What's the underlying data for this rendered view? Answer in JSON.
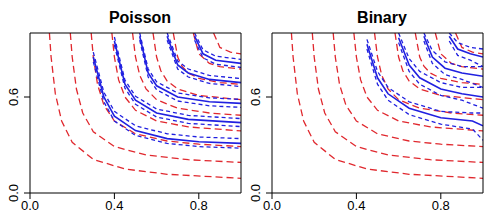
{
  "chart_data": [
    {
      "type": "line",
      "title": "Poisson",
      "xlim": [
        0,
        1
      ],
      "ylim": [
        0,
        1
      ],
      "xticks": [
        {
          "value": 0,
          "label": "0.0"
        },
        {
          "value": 0.4,
          "label": "0.4"
        },
        {
          "value": 0.8,
          "label": "0.8"
        }
      ],
      "yticks": [
        {
          "value": 0,
          "label": "0.0"
        },
        {
          "value": 0.6,
          "label": "0.6"
        }
      ],
      "series": [
        {
          "color": "#e0282e",
          "line_style": "dashed",
          "x": [
            0.092,
            0.1,
            0.12,
            0.15,
            0.2,
            0.3,
            0.45,
            0.65,
            1.0
          ],
          "y": [
            1.0,
            0.85,
            0.621,
            0.45,
            0.317,
            0.21,
            0.15,
            0.117,
            0.092
          ]
        },
        {
          "color": "#e0282e",
          "line_style": "dashed",
          "x": [
            0.191,
            0.2,
            0.22,
            0.25,
            0.3,
            0.4,
            0.55,
            0.75,
            1.0
          ],
          "y": [
            1.0,
            0.85,
            0.65,
            0.5,
            0.383,
            0.29,
            0.238,
            0.208,
            0.191
          ]
        },
        {
          "color": "#e0282e",
          "line_style": "dashed",
          "x": [
            0.29,
            0.3,
            0.32,
            0.35,
            0.4,
            0.5,
            0.65,
            0.8,
            1.0
          ],
          "y": [
            1.0,
            0.85,
            0.679,
            0.55,
            0.45,
            0.37,
            0.325,
            0.305,
            0.29
          ]
        },
        {
          "color": "#e0282e",
          "line_style": "dashed",
          "x": [
            0.388,
            0.4,
            0.42,
            0.45,
            0.5,
            0.6,
            0.75,
            1.0
          ],
          "y": [
            1.0,
            0.85,
            0.707,
            0.6,
            0.517,
            0.45,
            0.413,
            0.388
          ]
        },
        {
          "color": "#e0282e",
          "line_style": "dashed",
          "x": [
            0.486,
            0.5,
            0.52,
            0.55,
            0.6,
            0.7,
            0.85,
            1.0
          ],
          "y": [
            1.0,
            0.85,
            0.736,
            0.65,
            0.583,
            0.53,
            0.5,
            0.486
          ]
        },
        {
          "color": "#e0282e",
          "line_style": "dashed",
          "x": [
            0.583,
            0.6,
            0.62,
            0.65,
            0.7,
            0.8,
            1.0
          ],
          "y": [
            1.0,
            0.85,
            0.764,
            0.7,
            0.65,
            0.61,
            0.583
          ]
        },
        {
          "color": "#e0282e",
          "line_style": "dashed",
          "x": [
            0.679,
            0.7,
            0.72,
            0.75,
            0.8,
            0.9,
            1.0
          ],
          "y": [
            1.0,
            0.85,
            0.793,
            0.75,
            0.717,
            0.69,
            0.679
          ]
        },
        {
          "color": "#e0282e",
          "line_style": "dashed",
          "x": [
            0.774,
            0.8,
            0.85,
            0.9,
            1.0
          ],
          "y": [
            1.0,
            0.87,
            0.81,
            0.79,
            0.774
          ]
        },
        {
          "color": "#e0282e",
          "line_style": "dashed",
          "x": [
            0.87,
            0.9,
            0.95,
            1.0
          ],
          "y": [
            1.0,
            0.91,
            0.88,
            0.87
          ]
        },
        {
          "color": "#2020e0",
          "line_style": "solid",
          "x": [
            0.3,
            0.35,
            0.4,
            0.5,
            0.65,
            0.8,
            1.0
          ],
          "y": [
            0.85,
            0.6,
            0.48,
            0.39,
            0.34,
            0.32,
            0.31
          ]
        },
        {
          "color": "#2020e0",
          "line_style": "dashed",
          "x": [
            0.3,
            0.35,
            0.4,
            0.5,
            0.65,
            0.8,
            1.0
          ],
          "y": [
            0.88,
            0.63,
            0.51,
            0.42,
            0.37,
            0.35,
            0.34
          ]
        },
        {
          "color": "#2020e0",
          "line_style": "dashed",
          "x": [
            0.3,
            0.35,
            0.4,
            0.5,
            0.65,
            0.8,
            1.0
          ],
          "y": [
            0.82,
            0.57,
            0.45,
            0.36,
            0.31,
            0.29,
            0.28
          ]
        },
        {
          "color": "#2020e0",
          "line_style": "solid",
          "x": [
            0.4,
            0.45,
            0.5,
            0.6,
            0.75,
            1.0
          ],
          "y": [
            0.95,
            0.68,
            0.58,
            0.5,
            0.46,
            0.44
          ]
        },
        {
          "color": "#2020e0",
          "line_style": "dashed",
          "x": [
            0.4,
            0.45,
            0.5,
            0.6,
            0.75,
            1.0
          ],
          "y": [
            0.975,
            0.705,
            0.605,
            0.525,
            0.485,
            0.465
          ]
        },
        {
          "color": "#2020e0",
          "line_style": "dashed",
          "x": [
            0.4,
            0.45,
            0.5,
            0.6,
            0.75,
            1.0
          ],
          "y": [
            0.925,
            0.655,
            0.555,
            0.475,
            0.435,
            0.415
          ]
        },
        {
          "color": "#2020e0",
          "line_style": "solid",
          "x": [
            0.52,
            0.56,
            0.6,
            0.7,
            0.85,
            1.0
          ],
          "y": [
            0.98,
            0.75,
            0.67,
            0.6,
            0.57,
            0.56
          ]
        },
        {
          "color": "#2020e0",
          "line_style": "dashed",
          "x": [
            0.52,
            0.56,
            0.6,
            0.7,
            0.85,
            1.0
          ],
          "y": [
            1.0,
            0.775,
            0.695,
            0.625,
            0.595,
            0.585
          ]
        },
        {
          "color": "#2020e0",
          "line_style": "dashed",
          "x": [
            0.52,
            0.56,
            0.6,
            0.7,
            0.85,
            1.0
          ],
          "y": [
            0.955,
            0.725,
            0.645,
            0.575,
            0.545,
            0.535
          ]
        },
        {
          "color": "#2020e0",
          "line_style": "solid",
          "x": [
            0.65,
            0.7,
            0.75,
            0.85,
            1.0
          ],
          "y": [
            0.98,
            0.8,
            0.75,
            0.71,
            0.69
          ]
        },
        {
          "color": "#2020e0",
          "line_style": "dashed",
          "x": [
            0.65,
            0.7,
            0.75,
            0.85,
            1.0
          ],
          "y": [
            1.0,
            0.825,
            0.775,
            0.735,
            0.715
          ]
        },
        {
          "color": "#2020e0",
          "line_style": "dashed",
          "x": [
            0.65,
            0.7,
            0.75,
            0.85,
            1.0
          ],
          "y": [
            0.955,
            0.775,
            0.725,
            0.685,
            0.665
          ]
        },
        {
          "color": "#2020e0",
          "line_style": "solid",
          "x": [
            0.78,
            0.82,
            0.88,
            1.0
          ],
          "y": [
            0.98,
            0.87,
            0.83,
            0.81
          ]
        },
        {
          "color": "#2020e0",
          "line_style": "dashed",
          "x": [
            0.78,
            0.82,
            0.88,
            1.0
          ],
          "y": [
            1.0,
            0.895,
            0.855,
            0.835
          ]
        },
        {
          "color": "#2020e0",
          "line_style": "dashed",
          "x": [
            0.78,
            0.82,
            0.88,
            1.0
          ],
          "y": [
            0.955,
            0.845,
            0.805,
            0.785
          ]
        }
      ]
    },
    {
      "type": "line",
      "title": "Binary",
      "xlim": [
        0,
        1
      ],
      "ylim": [
        0,
        1
      ],
      "xticks": [
        {
          "value": 0,
          "label": "0.0"
        },
        {
          "value": 0.4,
          "label": "0.4"
        },
        {
          "value": 0.8,
          "label": "0.8"
        }
      ],
      "yticks": [
        {
          "value": 0,
          "label": "0.0"
        },
        {
          "value": 0.6,
          "label": "0.6"
        }
      ],
      "series": [
        {
          "color": "#e0282e",
          "line_style": "dashed",
          "x": [
            0.092,
            0.1,
            0.12,
            0.15,
            0.2,
            0.3,
            0.45,
            0.65,
            1.0
          ],
          "y": [
            1.0,
            0.85,
            0.621,
            0.45,
            0.317,
            0.21,
            0.15,
            0.117,
            0.092
          ]
        },
        {
          "color": "#e0282e",
          "line_style": "dashed",
          "x": [
            0.191,
            0.2,
            0.22,
            0.25,
            0.3,
            0.4,
            0.55,
            0.75,
            1.0
          ],
          "y": [
            1.0,
            0.85,
            0.65,
            0.5,
            0.383,
            0.29,
            0.238,
            0.208,
            0.191
          ]
        },
        {
          "color": "#e0282e",
          "line_style": "dashed",
          "x": [
            0.29,
            0.3,
            0.32,
            0.35,
            0.4,
            0.5,
            0.65,
            0.8,
            1.0
          ],
          "y": [
            1.0,
            0.85,
            0.679,
            0.55,
            0.45,
            0.37,
            0.325,
            0.305,
            0.29
          ]
        },
        {
          "color": "#e0282e",
          "line_style": "dashed",
          "x": [
            0.388,
            0.4,
            0.42,
            0.45,
            0.5,
            0.6,
            0.75,
            1.0
          ],
          "y": [
            1.0,
            0.85,
            0.707,
            0.6,
            0.517,
            0.45,
            0.413,
            0.388
          ]
        },
        {
          "color": "#e0282e",
          "line_style": "dashed",
          "x": [
            0.486,
            0.5,
            0.52,
            0.55,
            0.6,
            0.7,
            0.85,
            1.0
          ],
          "y": [
            1.0,
            0.85,
            0.736,
            0.65,
            0.583,
            0.53,
            0.5,
            0.486
          ]
        },
        {
          "color": "#e0282e",
          "line_style": "dashed",
          "x": [
            0.583,
            0.6,
            0.62,
            0.65,
            0.7,
            0.8,
            1.0
          ],
          "y": [
            1.0,
            0.85,
            0.764,
            0.7,
            0.65,
            0.61,
            0.583
          ]
        },
        {
          "color": "#e0282e",
          "line_style": "dashed",
          "x": [
            0.679,
            0.7,
            0.72,
            0.75,
            0.8,
            0.9,
            1.0
          ],
          "y": [
            1.0,
            0.85,
            0.793,
            0.75,
            0.717,
            0.69,
            0.679
          ]
        },
        {
          "color": "#e0282e",
          "line_style": "dashed",
          "x": [
            0.774,
            0.8,
            0.85,
            0.9,
            1.0
          ],
          "y": [
            1.0,
            0.87,
            0.81,
            0.79,
            0.774
          ]
        },
        {
          "color": "#e0282e",
          "line_style": "dashed",
          "x": [
            0.87,
            0.9,
            0.95,
            1.0
          ],
          "y": [
            1.0,
            0.91,
            0.88,
            0.87
          ]
        },
        {
          "color": "#2020e0",
          "line_style": "solid",
          "x": [
            0.45,
            0.5,
            0.55,
            0.65,
            0.8,
            0.95,
            1.0
          ],
          "y": [
            0.93,
            0.72,
            0.62,
            0.53,
            0.47,
            0.45,
            0.42
          ]
        },
        {
          "color": "#2020e0",
          "line_style": "dashed",
          "x": [
            0.45,
            0.5,
            0.55,
            0.65,
            0.8,
            0.95,
            1.0
          ],
          "y": [
            0.96,
            0.76,
            0.66,
            0.57,
            0.51,
            0.5,
            0.5
          ]
        },
        {
          "color": "#2020e0",
          "line_style": "dashed",
          "x": [
            0.45,
            0.5,
            0.55,
            0.65,
            0.8,
            0.95,
            1.0
          ],
          "y": [
            0.9,
            0.68,
            0.58,
            0.49,
            0.43,
            0.4,
            0.33
          ]
        },
        {
          "color": "#2020e0",
          "line_style": "solid",
          "x": [
            0.6,
            0.65,
            0.7,
            0.8,
            0.9,
            1.0
          ],
          "y": [
            0.97,
            0.8,
            0.72,
            0.65,
            0.62,
            0.6
          ]
        },
        {
          "color": "#2020e0",
          "line_style": "dashed",
          "x": [
            0.6,
            0.65,
            0.7,
            0.8,
            0.9,
            1.0
          ],
          "y": [
            1.0,
            0.84,
            0.76,
            0.69,
            0.66,
            0.66
          ]
        },
        {
          "color": "#2020e0",
          "line_style": "dashed",
          "x": [
            0.6,
            0.65,
            0.7,
            0.8,
            0.9,
            1.0
          ],
          "y": [
            0.94,
            0.76,
            0.68,
            0.61,
            0.58,
            0.53
          ]
        },
        {
          "color": "#2020e0",
          "line_style": "solid",
          "x": [
            0.72,
            0.76,
            0.82,
            0.9,
            1.0
          ],
          "y": [
            0.98,
            0.85,
            0.78,
            0.75,
            0.73
          ]
        },
        {
          "color": "#2020e0",
          "line_style": "dashed",
          "x": [
            0.72,
            0.76,
            0.82,
            0.9,
            1.0
          ],
          "y": [
            1.0,
            0.89,
            0.82,
            0.79,
            0.79
          ]
        },
        {
          "color": "#2020e0",
          "line_style": "dashed",
          "x": [
            0.72,
            0.76,
            0.82,
            0.9,
            1.0
          ],
          "y": [
            0.95,
            0.81,
            0.74,
            0.71,
            0.66
          ]
        },
        {
          "color": "#2020e0",
          "line_style": "solid",
          "x": [
            0.84,
            0.88,
            0.94,
            1.0
          ],
          "y": [
            0.98,
            0.9,
            0.87,
            0.85
          ]
        },
        {
          "color": "#2020e0",
          "line_style": "dashed",
          "x": [
            0.84,
            0.88,
            0.94,
            1.0
          ],
          "y": [
            1.0,
            0.94,
            0.91,
            0.9
          ]
        },
        {
          "color": "#2020e0",
          "line_style": "dashed",
          "x": [
            0.84,
            0.88,
            0.94,
            1.0
          ],
          "y": [
            0.95,
            0.86,
            0.83,
            0.79
          ]
        }
      ]
    }
  ]
}
